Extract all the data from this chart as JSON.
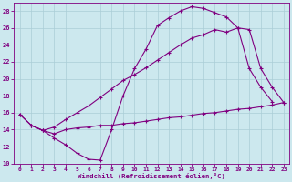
{
  "xlabel": "Windchill (Refroidissement éolien,°C)",
  "background_color": "#cce8ee",
  "line_color": "#800080",
  "grid_color": "#aacdd6",
  "xlim": [
    -0.5,
    23.5
  ],
  "ylim": [
    10,
    29
  ],
  "xticks": [
    0,
    1,
    2,
    3,
    4,
    5,
    6,
    7,
    8,
    9,
    10,
    11,
    12,
    13,
    14,
    15,
    16,
    17,
    18,
    19,
    20,
    21,
    22,
    23
  ],
  "yticks": [
    10,
    12,
    14,
    16,
    18,
    20,
    22,
    24,
    26,
    28
  ],
  "line1_x": [
    0,
    1,
    2,
    3,
    4,
    5,
    6,
    7,
    8,
    9,
    10,
    11,
    12,
    13,
    14,
    15,
    16,
    17,
    18,
    19,
    20,
    21,
    22
  ],
  "line1_y": [
    15.8,
    14.5,
    13.9,
    13.0,
    12.2,
    11.2,
    10.5,
    10.4,
    14.0,
    18.0,
    21.2,
    23.5,
    26.3,
    27.2,
    28.0,
    28.5,
    28.3,
    27.8,
    27.3,
    26.0,
    21.2,
    19.0,
    17.3
  ],
  "line2_x": [
    0,
    1,
    2,
    3,
    4,
    5,
    6,
    7,
    8,
    9,
    10,
    11,
    12,
    13,
    14,
    15,
    16,
    17,
    18,
    19,
    20,
    21,
    22,
    23
  ],
  "line2_y": [
    15.8,
    14.5,
    13.9,
    14.3,
    15.2,
    16.0,
    16.8,
    17.8,
    18.8,
    19.8,
    20.5,
    21.3,
    22.2,
    23.1,
    24.0,
    24.8,
    25.2,
    25.8,
    25.5,
    26.0,
    25.8,
    21.2,
    19.0,
    17.2
  ],
  "line3_x": [
    1,
    2,
    3,
    4,
    5,
    6,
    7,
    8,
    9,
    10,
    11,
    12,
    13,
    14,
    15,
    16,
    17,
    18,
    19,
    20,
    21,
    22,
    23
  ],
  "line3_y": [
    14.5,
    13.9,
    13.5,
    14.0,
    14.2,
    14.3,
    14.5,
    14.5,
    14.7,
    14.8,
    15.0,
    15.2,
    15.4,
    15.5,
    15.7,
    15.9,
    16.0,
    16.2,
    16.4,
    16.5,
    16.7,
    16.9,
    17.2
  ]
}
